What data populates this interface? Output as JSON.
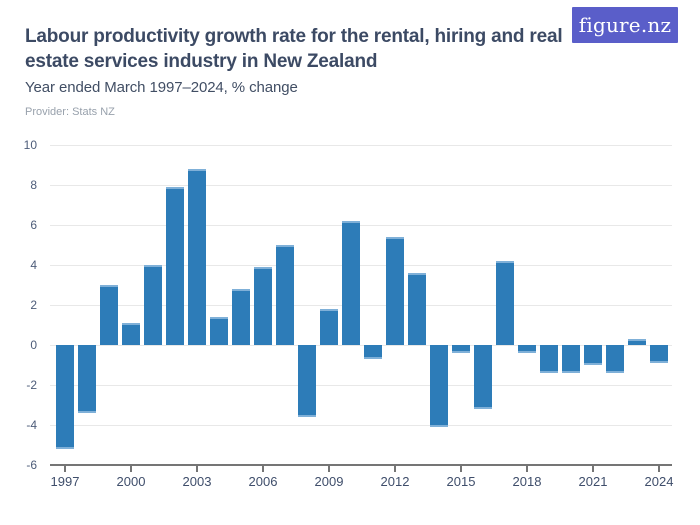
{
  "header": {
    "title": "Labour productivity growth rate for the rental, hiring and real\nestate services industry in New Zealand",
    "subtitle": "Year ended March 1997–2024, % change",
    "provider": "Provider: Stats NZ",
    "logo_text": "figure.nz",
    "logo_bg": "#5a5ec9",
    "title_color": "#3c4a64"
  },
  "chart_data": {
    "type": "bar",
    "title": "Labour productivity growth rate for the rental, hiring and real estate services industry in New Zealand",
    "subtitle": "Year ended March 1997–2024, % change",
    "xlabel": "",
    "ylabel": "",
    "categories": [
      "1997",
      "1998",
      "1999",
      "2000",
      "2001",
      "2002",
      "2003",
      "2004",
      "2005",
      "2006",
      "2007",
      "2008",
      "2009",
      "2010",
      "2011",
      "2012",
      "2013",
      "2014",
      "2015",
      "2016",
      "2017",
      "2018",
      "2019",
      "2020",
      "2021",
      "2022",
      "2023",
      "2024"
    ],
    "values": [
      -5.2,
      -3.4,
      3.0,
      1.1,
      4.0,
      7.9,
      8.8,
      1.4,
      2.8,
      3.9,
      5.0,
      -3.6,
      1.8,
      6.2,
      -0.7,
      5.4,
      3.6,
      -4.1,
      -0.4,
      -3.2,
      4.2,
      -0.4,
      -1.4,
      -1.4,
      -1.0,
      -1.4,
      0.3,
      -0.9
    ],
    "ylim": [
      -6,
      10
    ],
    "yticks": [
      10,
      8,
      6,
      4,
      2,
      0,
      -2,
      -4,
      -6
    ],
    "xtick_years": [
      "1997",
      "2000",
      "2003",
      "2006",
      "2009",
      "2012",
      "2015",
      "2018",
      "2021",
      "2024"
    ],
    "grid": true,
    "legend": "none",
    "bar_color": "#2d7cb8",
    "bar_cap_color": "#7fb0d8",
    "axis_color": "#757575",
    "grid_color": "#e8e8e8"
  }
}
